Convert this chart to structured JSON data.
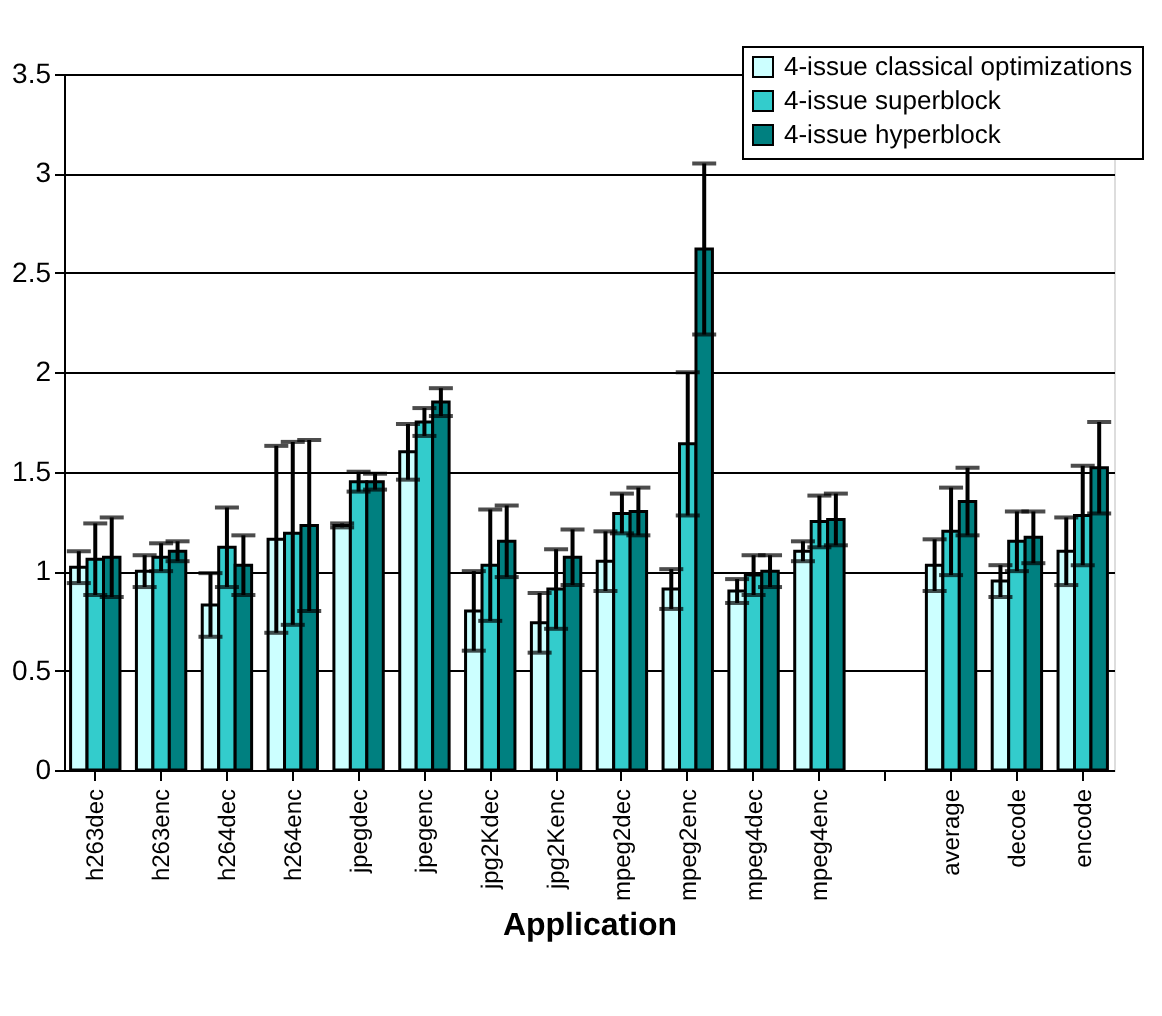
{
  "chart_data": {
    "type": "bar",
    "xlabel": "Application",
    "categories": [
      "h263dec",
      "h263enc",
      "h264dec",
      "h264enc",
      "jpegdec",
      "jpegenc",
      "jpg2Kdec",
      "jpg2Kenc",
      "mpeg2dec",
      "mpeg2enc",
      "mpeg4dec",
      "mpeg4enc",
      null,
      "average",
      "decode",
      "encode"
    ],
    "series": [
      {
        "name": "4-issue classical optimizations",
        "color": "#ccffff",
        "values": [
          1.02,
          1.0,
          0.83,
          1.16,
          1.23,
          1.6,
          0.8,
          0.74,
          1.05,
          0.91,
          0.9,
          1.1,
          null,
          1.03,
          0.95,
          1.1
        ],
        "errors": [
          0.08,
          0.08,
          0.16,
          0.47,
          0.01,
          0.14,
          0.2,
          0.15,
          0.15,
          0.1,
          0.06,
          0.05,
          null,
          0.13,
          0.08,
          0.17
        ]
      },
      {
        "name": "4-issue superblock",
        "color": "#33cccc",
        "values": [
          1.06,
          1.07,
          1.12,
          1.19,
          1.45,
          1.75,
          1.03,
          0.91,
          1.29,
          1.64,
          0.98,
          1.25,
          null,
          1.2,
          1.15,
          1.28
        ],
        "errors": [
          0.18,
          0.07,
          0.2,
          0.46,
          0.05,
          0.07,
          0.28,
          0.2,
          0.1,
          0.36,
          0.1,
          0.13,
          null,
          0.22,
          0.15,
          0.25
        ]
      },
      {
        "name": "4-issue hyperblock",
        "color": "#008080",
        "values": [
          1.07,
          1.1,
          1.03,
          1.23,
          1.45,
          1.85,
          1.15,
          1.07,
          1.3,
          2.62,
          1.0,
          1.26,
          null,
          1.35,
          1.17,
          1.52
        ],
        "errors": [
          0.2,
          0.05,
          0.15,
          0.43,
          0.04,
          0.07,
          0.18,
          0.14,
          0.12,
          0.43,
          0.08,
          0.13,
          null,
          0.17,
          0.13,
          0.23
        ]
      }
    ],
    "ylim": [
      0,
      3.5
    ],
    "yticks": [
      0,
      0.5,
      1,
      1.5,
      2,
      2.5,
      3,
      3.5
    ],
    "grid": "y",
    "legend": "top right"
  }
}
